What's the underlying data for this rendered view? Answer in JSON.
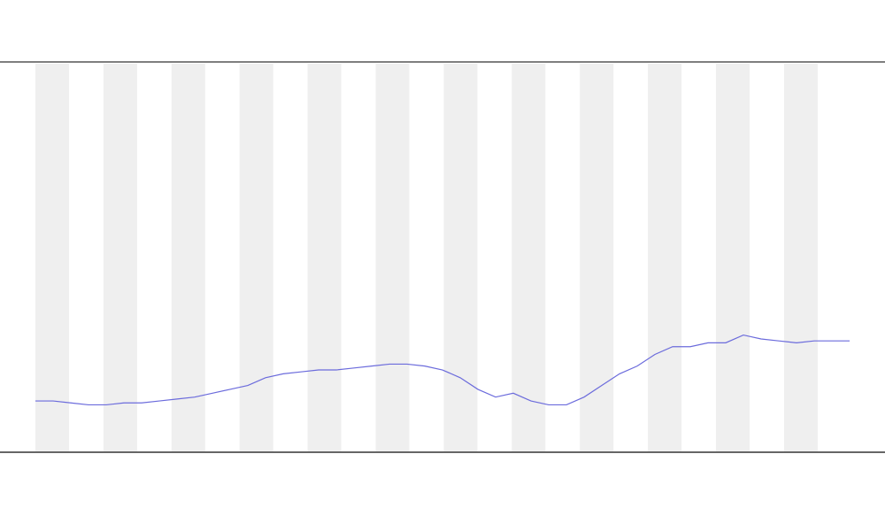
{
  "chart_data": {
    "type": "line",
    "x": [
      0,
      1,
      2,
      3,
      4,
      5,
      6,
      7,
      8,
      9,
      10,
      11,
      12,
      13,
      14,
      15,
      16,
      17,
      18,
      19,
      20,
      21,
      22,
      23,
      24,
      25,
      26,
      27,
      28,
      29,
      30,
      31,
      32,
      33,
      34,
      35,
      36,
      37,
      38,
      39,
      40,
      41,
      42,
      43,
      44,
      45,
      46
    ],
    "series": [
      {
        "color": "#6b6bdc",
        "values": [
          13,
          13,
          12.5,
          12,
          12,
          12.5,
          12.5,
          13,
          13.5,
          14,
          15,
          16,
          17,
          19,
          20,
          20.5,
          21,
          21,
          21.5,
          22,
          22.5,
          22.5,
          22,
          21,
          19,
          16,
          14,
          15,
          13,
          12,
          12,
          14,
          17,
          20,
          22,
          25,
          27,
          27,
          28,
          28,
          30,
          29,
          28.5,
          28,
          28.5,
          28.5,
          28.5
        ]
      }
    ],
    "xlim": [
      0,
      46
    ],
    "ylim": [
      0,
      100
    ]
  }
}
